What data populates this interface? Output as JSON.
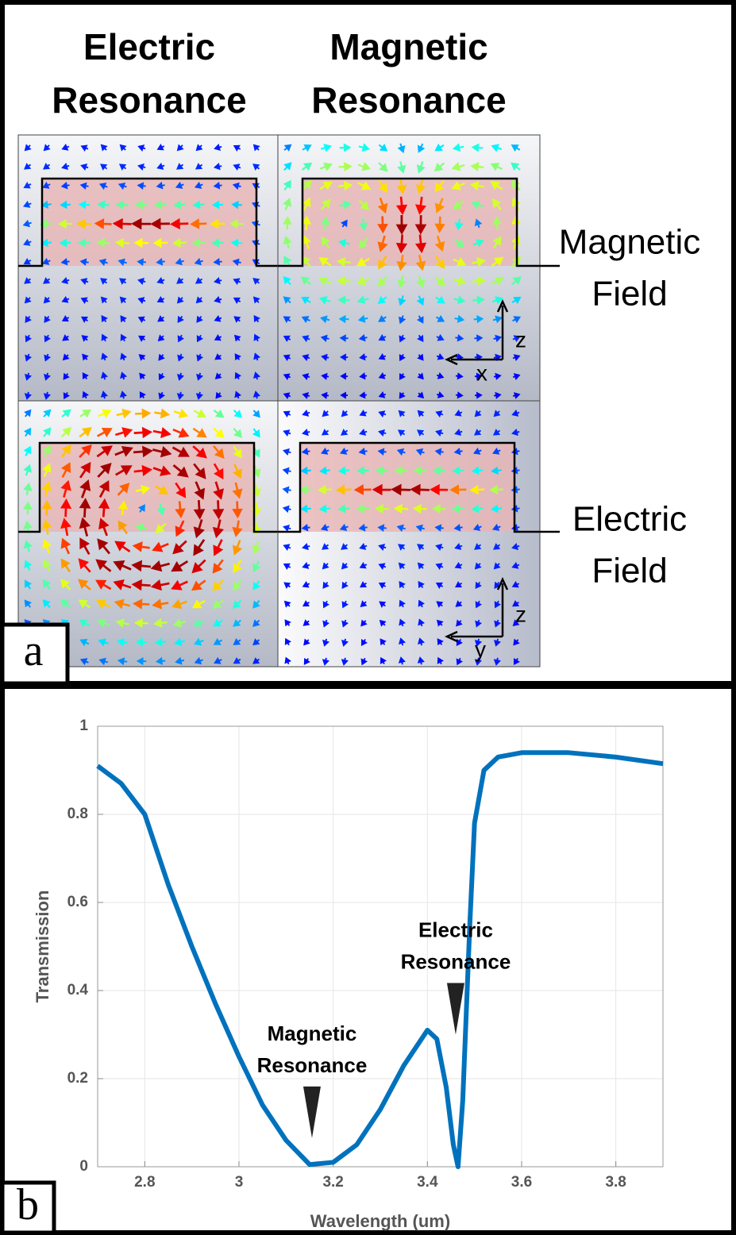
{
  "panel_a": {
    "columns": [
      [
        "Electric",
        "Resonance"
      ],
      [
        "Magnetic",
        "Resonance"
      ]
    ],
    "rows": [
      [
        "Magnetic",
        "Field"
      ],
      [
        "Electric",
        "Field"
      ]
    ],
    "axes": [
      [
        "z",
        "x"
      ],
      [
        "z",
        "y"
      ]
    ],
    "label": "a"
  },
  "chart_data": {
    "type": "line",
    "panel_label": "b",
    "x_label": "Wavelength (um)",
    "y_label": "Transmission",
    "x": [
      2.7,
      2.75,
      2.8,
      2.85,
      2.9,
      2.95,
      3.0,
      3.05,
      3.1,
      3.15,
      3.2,
      3.25,
      3.3,
      3.35,
      3.4,
      3.42,
      3.44,
      3.455,
      3.465,
      3.475,
      3.49,
      3.5,
      3.52,
      3.55,
      3.6,
      3.7,
      3.8,
      3.9
    ],
    "series": [
      {
        "name": "Transmission",
        "color": "#0072bd",
        "values": [
          0.91,
          0.87,
          0.8,
          0.64,
          0.5,
          0.37,
          0.25,
          0.14,
          0.06,
          0.005,
          0.01,
          0.05,
          0.13,
          0.23,
          0.31,
          0.29,
          0.18,
          0.05,
          0.0,
          0.15,
          0.55,
          0.78,
          0.9,
          0.93,
          0.94,
          0.94,
          0.93,
          0.915
        ]
      }
    ],
    "xlim": [
      2.7,
      3.9
    ],
    "ylim": [
      0,
      1
    ],
    "xticks": [
      2.8,
      3,
      3.2,
      3.4,
      3.6,
      3.8
    ],
    "yticks": [
      0,
      0.2,
      0.4,
      0.6,
      0.8,
      1
    ],
    "grid": true,
    "annotations": [
      {
        "lines": [
          "Magnetic",
          "Resonance"
        ],
        "x": 3.155,
        "y": 0.065
      },
      {
        "lines": [
          "Electric",
          "Resonance"
        ],
        "x": 3.46,
        "y": 0.3
      }
    ]
  }
}
